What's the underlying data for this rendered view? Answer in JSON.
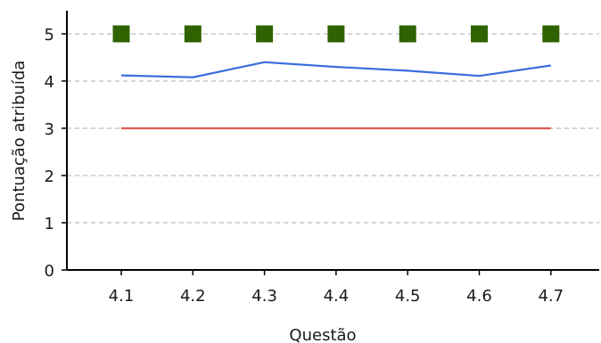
{
  "chart_data": {
    "type": "line",
    "categories": [
      "4.1",
      "4.2",
      "4.3",
      "4.4",
      "4.5",
      "4.6",
      "4.7"
    ],
    "series": [
      {
        "values": [
          5,
          5,
          5,
          5,
          5,
          5,
          5
        ],
        "style": "square-markers",
        "color": "#2f6300"
      },
      {
        "values": [
          4.12,
          4.08,
          4.4,
          4.3,
          4.22,
          4.11,
          4.33
        ],
        "style": "line",
        "color": "#3b6ee0"
      },
      {
        "values": [
          3,
          3,
          3,
          3,
          3,
          3,
          3
        ],
        "style": "line",
        "color": "#e05a4f"
      }
    ],
    "xlabel": "Questão",
    "ylabel": "Pontuação atribuída",
    "ylim": [
      0,
      5.5
    ],
    "yticks": [
      "0",
      "1",
      "2",
      "3",
      "4",
      "5"
    ],
    "grid": "horizontal-dashed"
  }
}
